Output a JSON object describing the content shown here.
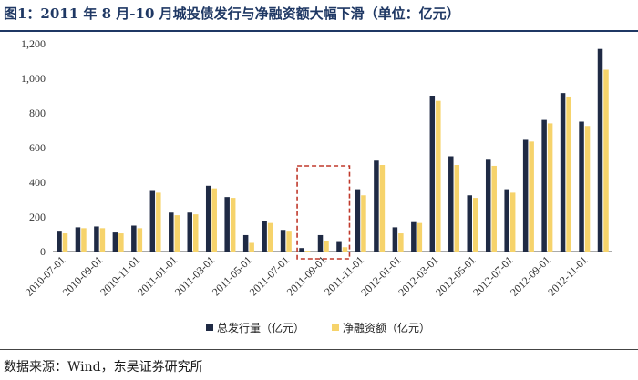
{
  "header": {
    "title": "图1：2011 年 8 月-10 月城投债发行与净融资额大幅下滑（单位：亿元）"
  },
  "footer": {
    "source": "数据来源：Wind，东吴证券研究所"
  },
  "colors": {
    "total": "#1f2a44",
    "net": "#f6d36b",
    "highlight": "#c0392b",
    "title": "#1f3864"
  },
  "chart_data": {
    "type": "bar",
    "title": "图1：2011 年 8 月-10 月城投债发行与净融资额大幅下滑（单位：亿元）",
    "xlabel": "",
    "ylabel": "",
    "ylim": [
      0,
      1200
    ],
    "yticks": [
      0,
      200,
      400,
      600,
      800,
      1000,
      1200
    ],
    "ytick_labels": [
      "0",
      "200",
      "400",
      "600",
      "800",
      "1,000",
      "1,200"
    ],
    "grid": false,
    "legend_position": "bottom",
    "categories": [
      "2010-07-01",
      "2010-08-01",
      "2010-09-01",
      "2010-10-01",
      "2010-11-01",
      "2010-12-01",
      "2011-01-01",
      "2011-02-01",
      "2011-03-01",
      "2011-04-01",
      "2011-05-01",
      "2011-06-01",
      "2011-07-01",
      "2011-08-01",
      "2011-09-01",
      "2011-10-01",
      "2011-11-01",
      "2011-12-01",
      "2012-01-01",
      "2012-02-01",
      "2012-03-01",
      "2012-04-01",
      "2012-05-01",
      "2012-06-01",
      "2012-07-01",
      "2012-08-01",
      "2012-09-01",
      "2012-10-01",
      "2012-11-01",
      "2012-12-01"
    ],
    "x_tick_labels": [
      "2010-07-01",
      "2010-09-01",
      "2010-11-01",
      "2011-01-01",
      "2011-03-01",
      "2011-05-01",
      "2011-07-01",
      "2011-09-01",
      "2011-11-01",
      "2012-01-01",
      "2012-03-01",
      "2012-05-01",
      "2012-07-01",
      "2012-09-01",
      "2012-11-01"
    ],
    "series": [
      {
        "name": "总发行量（亿元）",
        "color": "#1f2a44",
        "values": [
          115,
          140,
          145,
          110,
          150,
          350,
          225,
          225,
          380,
          315,
          95,
          175,
          125,
          20,
          95,
          55,
          360,
          525,
          140,
          170,
          900,
          550,
          325,
          530,
          360,
          645,
          760,
          915,
          750,
          1170
        ]
      },
      {
        "name": "净融资额（亿元）",
        "color": "#f6d36b",
        "values": [
          105,
          135,
          135,
          105,
          135,
          340,
          210,
          215,
          365,
          310,
          50,
          165,
          115,
          5,
          60,
          25,
          325,
          500,
          105,
          165,
          870,
          500,
          310,
          495,
          340,
          635,
          740,
          895,
          725,
          1050
        ]
      }
    ],
    "highlight_range": [
      "2011-08-01",
      "2011-10-01"
    ]
  }
}
